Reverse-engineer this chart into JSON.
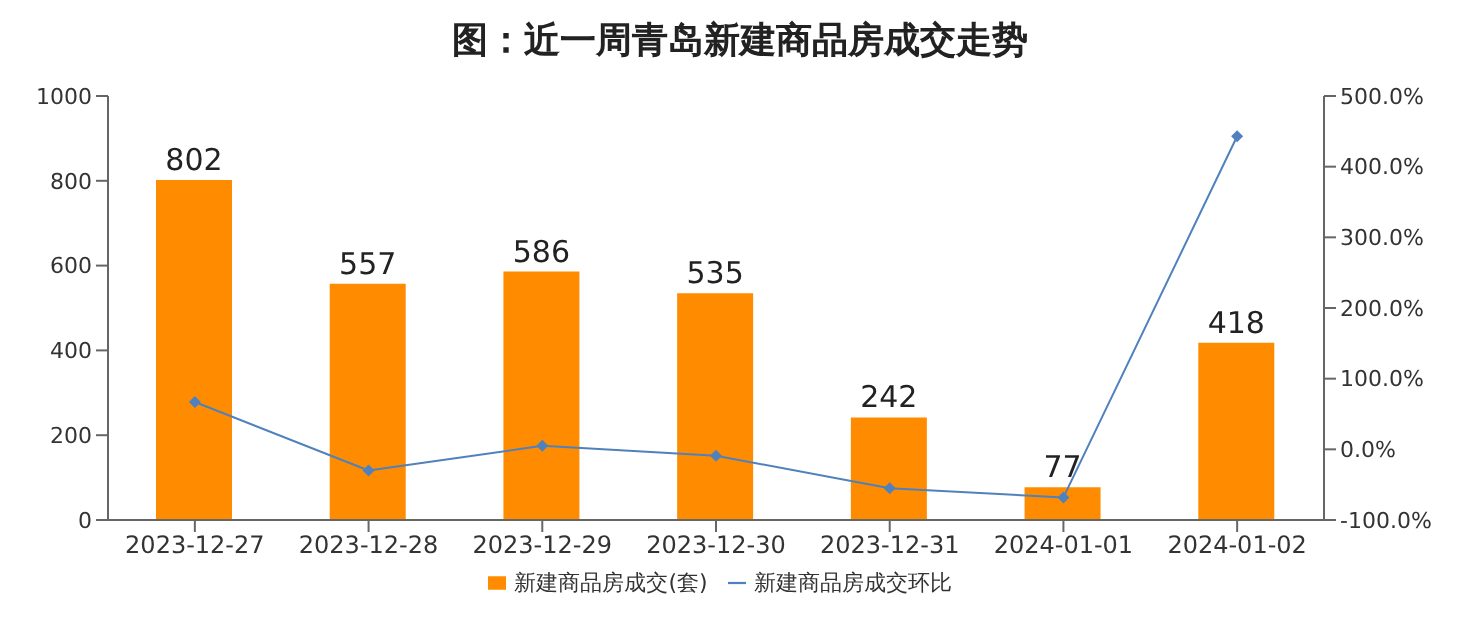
{
  "chart_data": {
    "type": "bar",
    "title": "图：近一周青岛新建商品房成交走势",
    "categories": [
      "2023-12-27",
      "2023-12-28",
      "2023-12-29",
      "2023-12-30",
      "2023-12-31",
      "2024-01-01",
      "2024-01-02"
    ],
    "series": [
      {
        "name": "新建商品房成交(套)",
        "color": "#ff8c00",
        "values": [
          802,
          557,
          586,
          535,
          242,
          77,
          418
        ],
        "value_labels": [
          "802",
          "557",
          "586",
          "535",
          "242",
          "77",
          "418"
        ]
      },
      {
        "name": "新建商品房成交环比",
        "type": "line",
        "axis": "y2",
        "color": "#4f81bd",
        "values": [
          67,
          -30,
          5,
          -9,
          -55,
          -68,
          443
        ]
      }
    ],
    "ylim": [
      0,
      1000
    ],
    "yticks": [
      0,
      200,
      400,
      600,
      800,
      1000
    ],
    "y2lim": [
      -100,
      500
    ],
    "y2ticks": [
      {
        "value": -100,
        "label": "-100.0%"
      },
      {
        "value": 0,
        "label": "0.0%"
      },
      {
        "value": 100,
        "label": "100.0%"
      },
      {
        "value": 200,
        "label": "200.0%"
      },
      {
        "value": 300,
        "label": "300.0%"
      },
      {
        "value": 400,
        "label": "400.0%"
      },
      {
        "value": 500,
        "label": "500.0%"
      }
    ],
    "grid": false,
    "legend": "bottom",
    "marker": "diamond",
    "line_style": "solid"
  }
}
